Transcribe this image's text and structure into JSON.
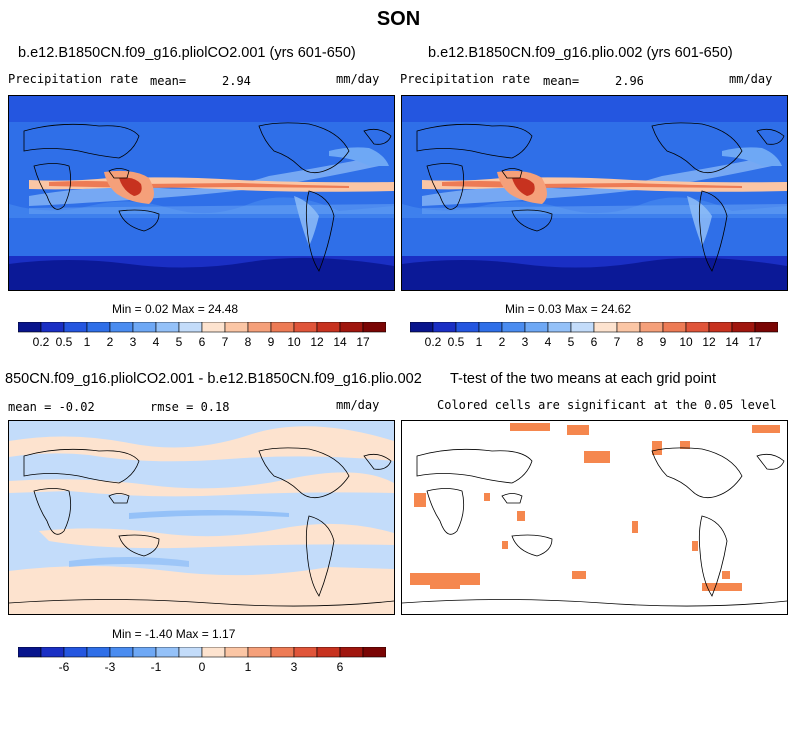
{
  "season": "SON",
  "panels": {
    "p1": {
      "title": "b.e12.B1850CN.f09_g16.pliolCO2.001 (yrs 601-650)",
      "left": "Precipitation rate",
      "mean_label": "mean=",
      "mean": "2.94",
      "units": "mm/day",
      "minmax": "Min =   0.02 Max =  24.48"
    },
    "p2": {
      "title": "b.e12.B1850CN.f09_g16.plio.002 (yrs 601-650)",
      "left": "Precipitation rate",
      "mean_label": "mean=",
      "mean": "2.96",
      "units": "mm/day",
      "minmax": "Min =   0.03 Max =  24.62"
    },
    "p3": {
      "title": "850CN.f09_g16.pliolCO2.001 - b.e12.B1850CN.f09_g16.plio.002",
      "mean_text": "mean =  -0.02",
      "rmse_text": "rmse =   0.18",
      "units": "mm/day",
      "minmax": "Min =  -1.40 Max =   1.17"
    },
    "p4": {
      "title": "T-test of the two means at each grid point",
      "subtitle": "Colored cells are significant at the 0.05 level"
    }
  },
  "colorbars": {
    "precip": {
      "colors": [
        "#08148c",
        "#1a2fc4",
        "#2456e0",
        "#2f6fe8",
        "#4a8cf0",
        "#6ea8f5",
        "#94c1f8",
        "#c3dcfa",
        "#fde3cf",
        "#fbc6a5",
        "#f5a07a",
        "#ed7b55",
        "#e0553a",
        "#c7321f",
        "#a0160e",
        "#7a0504"
      ],
      "labels": [
        "0.2",
        "0.5",
        "1",
        "2",
        "3",
        "4",
        "5",
        "6",
        "7",
        "8",
        "9",
        "10",
        "12",
        "14",
        "17"
      ]
    },
    "diff": {
      "colors": [
        "#08148c",
        "#1a2fc4",
        "#2456e0",
        "#2f6fe8",
        "#4a8cf0",
        "#6ea8f5",
        "#94c1f8",
        "#c3dcfa",
        "#fde3cf",
        "#fbc6a5",
        "#f5a07a",
        "#ed7b55",
        "#e0553a",
        "#c7321f",
        "#a0160e",
        "#7a0504"
      ],
      "labels": [
        "",
        "-6",
        "",
        "-3",
        "",
        "-1",
        "",
        "0",
        "",
        "1",
        "",
        "3",
        "",
        "6",
        ""
      ]
    }
  },
  "chart_data": [
    {
      "type": "heatmap",
      "title": "b.e12.B1850CN.f09_g16.pliolCO2.001 (yrs 601-650)",
      "variable": "Precipitation rate",
      "units": "mm/day",
      "mean": 2.94,
      "min": 0.02,
      "max": 24.48,
      "levels": [
        0.2,
        0.5,
        1,
        2,
        3,
        4,
        5,
        6,
        7,
        8,
        9,
        10,
        12,
        14,
        17
      ]
    },
    {
      "type": "heatmap",
      "title": "b.e12.B1850CN.f09_g16.plio.002 (yrs 601-650)",
      "variable": "Precipitation rate",
      "units": "mm/day",
      "mean": 2.96,
      "min": 0.03,
      "max": 24.62,
      "levels": [
        0.2,
        0.5,
        1,
        2,
        3,
        4,
        5,
        6,
        7,
        8,
        9,
        10,
        12,
        14,
        17
      ]
    },
    {
      "type": "heatmap",
      "title": "850CN.f09_g16.pliolCO2.001 - b.e12.B1850CN.f09_g16.plio.002",
      "units": "mm/day",
      "mean": -0.02,
      "rmse": 0.18,
      "min": -1.4,
      "max": 1.17,
      "levels": [
        -6,
        -3,
        -1,
        0,
        1,
        3,
        6
      ]
    },
    {
      "type": "heatmap",
      "title": "T-test of the two means at each grid point",
      "subtitle": "Colored cells are significant at the 0.05 level",
      "significance_level": 0.05
    }
  ]
}
